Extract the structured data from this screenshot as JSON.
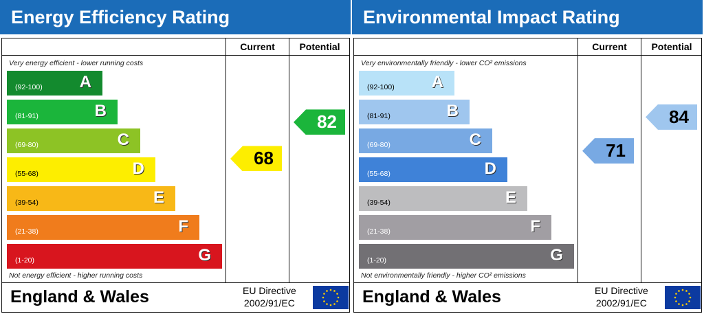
{
  "panels": [
    {
      "title": "Energy Efficiency Rating",
      "col_current": "Current",
      "col_potential": "Potential",
      "top_desc": "Very energy efficient - lower running costs",
      "bottom_desc": "Not energy efficient - higher running costs",
      "footer": "England & Wales",
      "eu_line1": "EU Directive",
      "eu_line2": "2002/91/EC",
      "bands": [
        {
          "letter": "A",
          "range": "(92-100)",
          "color": "#138a2e",
          "text_color": "#fff"
        },
        {
          "letter": "B",
          "range": "(81-91)",
          "color": "#1bb53b",
          "text_color": "#fff"
        },
        {
          "letter": "C",
          "range": "(69-80)",
          "color": "#8dc325",
          "text_color": "#fff"
        },
        {
          "letter": "D",
          "range": "(55-68)",
          "color": "#fdee00",
          "text_color": "#000"
        },
        {
          "letter": "E",
          "range": "(39-54)",
          "color": "#f8b817",
          "text_color": "#000"
        },
        {
          "letter": "F",
          "range": "(21-38)",
          "color": "#f07c1c",
          "text_color": "#fff"
        },
        {
          "letter": "G",
          "range": "(1-20)",
          "color": "#d8151e",
          "text_color": "#fff"
        }
      ],
      "current": {
        "value": 68,
        "color": "#fdee00",
        "text_color": "#000"
      },
      "potential": {
        "value": 82,
        "color": "#1bb53b",
        "text_color": "#fff"
      }
    },
    {
      "title": "Environmental Impact Rating",
      "col_current": "Current",
      "col_potential": "Potential",
      "top_desc": "Very environmentally friendly - lower CO² emissions",
      "bottom_desc": "Not environmentally friendly - higher CO² emissions",
      "footer": "England & Wales",
      "eu_line1": "EU Directive",
      "eu_line2": "2002/91/EC",
      "bands": [
        {
          "letter": "A",
          "range": "(92-100)",
          "color": "#b8e2f8",
          "text_color": "#000"
        },
        {
          "letter": "B",
          "range": "(81-91)",
          "color": "#9fc6ee",
          "text_color": "#000"
        },
        {
          "letter": "C",
          "range": "(69-80)",
          "color": "#78a9e3",
          "text_color": "#fff"
        },
        {
          "letter": "D",
          "range": "(55-68)",
          "color": "#3f82d8",
          "text_color": "#fff"
        },
        {
          "letter": "E",
          "range": "(39-54)",
          "color": "#bdbdbf",
          "text_color": "#000"
        },
        {
          "letter": "F",
          "range": "(21-38)",
          "color": "#a19ea3",
          "text_color": "#fff"
        },
        {
          "letter": "G",
          "range": "(1-20)",
          "color": "#727074",
          "text_color": "#fff"
        }
      ],
      "current": {
        "value": 71,
        "color": "#78a9e3",
        "text_color": "#000"
      },
      "potential": {
        "value": 84,
        "color": "#9fc6ee",
        "text_color": "#000"
      }
    }
  ],
  "chart_data": [
    {
      "type": "bar",
      "title": "Energy Efficiency Rating",
      "categories": [
        "A",
        "B",
        "C",
        "D",
        "E",
        "F",
        "G"
      ],
      "ranges": [
        "92-100",
        "81-91",
        "69-80",
        "55-68",
        "39-54",
        "21-38",
        "1-20"
      ],
      "current": 68,
      "potential": 82
    },
    {
      "type": "bar",
      "title": "Environmental Impact Rating",
      "categories": [
        "A",
        "B",
        "C",
        "D",
        "E",
        "F",
        "G"
      ],
      "ranges": [
        "92-100",
        "81-91",
        "69-80",
        "55-68",
        "39-54",
        "21-38",
        "1-20"
      ],
      "current": 71,
      "potential": 84
    }
  ]
}
